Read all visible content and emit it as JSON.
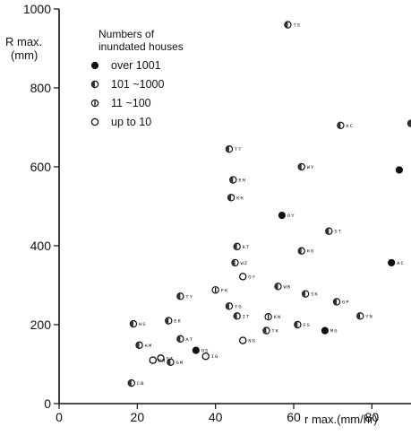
{
  "chart_data": {
    "type": "scatter",
    "xlabel": "r max.(mm/hr)",
    "ylabel": "R max. (mm)",
    "ylabel_lines": [
      "R max.",
      "(mm)"
    ],
    "xlim": [
      0,
      90
    ],
    "ylim": [
      0,
      1000
    ],
    "x_ticks": [
      0,
      20,
      40,
      60,
      80
    ],
    "y_ticks": [
      0,
      200,
      400,
      600,
      800,
      1000
    ],
    "x_tick_labels": [
      "0",
      "20",
      "40",
      "60",
      "80"
    ],
    "y_tick_labels": [
      "0",
      "200",
      "400",
      "600",
      "800",
      "1000"
    ],
    "grid": false,
    "legend": {
      "position": "top-left",
      "title_lines": [
        "Numbers of",
        "inundated houses"
      ],
      "entries": [
        {
          "key": "over1001",
          "label": "over 1001",
          "marker": "filled-circle"
        },
        {
          "key": "101to1000",
          "label": "101 ~1000",
          "marker": "circle-with-hatch"
        },
        {
          "key": "11to100",
          "label": "11 ~100",
          "marker": "circle-with-light-hatch"
        },
        {
          "key": "upto10",
          "label": "up to 10",
          "marker": "open-circle"
        }
      ]
    },
    "points": [
      {
        "label": "TS",
        "x": 58.5,
        "y": 960,
        "cat": "101to1000"
      },
      {
        "label": "KC",
        "x": 72,
        "y": 705,
        "cat": "101to1000"
      },
      {
        "label": "TT",
        "x": 43.5,
        "y": 645,
        "cat": "101to1000"
      },
      {
        "label": "WY",
        "x": 62,
        "y": 600,
        "cat": "101to1000"
      },
      {
        "label": "EH",
        "x": 44.5,
        "y": 567,
        "cat": "101to1000"
      },
      {
        "label": "KH",
        "x": 44,
        "y": 522,
        "cat": "101to1000"
      },
      {
        "label": "OY",
        "x": 57,
        "y": 477,
        "cat": "over1001"
      },
      {
        "label": "ST",
        "x": 69,
        "y": 437,
        "cat": "101to1000"
      },
      {
        "label": "KT",
        "x": 45.5,
        "y": 398,
        "cat": "101to1000"
      },
      {
        "label": "KG",
        "x": 62,
        "y": 387,
        "cat": "101to1000"
      },
      {
        "label": "WZ",
        "x": 45,
        "y": 357,
        "cat": "101to1000"
      },
      {
        "label": "AC",
        "x": 85,
        "y": 357,
        "cat": "over1001"
      },
      {
        "label": "OY",
        "x": 47,
        "y": 322,
        "cat": "upto10"
      },
      {
        "label": "WB",
        "x": 56,
        "y": 297,
        "cat": "101to1000"
      },
      {
        "label": "FK",
        "x": 40,
        "y": 288,
        "cat": "11to100"
      },
      {
        "label": "SK",
        "x": 63,
        "y": 278,
        "cat": "101to1000"
      },
      {
        "label": "TY",
        "x": 31,
        "y": 272,
        "cat": "101to1000"
      },
      {
        "label": "GP",
        "x": 71,
        "y": 258,
        "cat": "101to1000"
      },
      {
        "label": "TG",
        "x": 43.5,
        "y": 247,
        "cat": "101to1000"
      },
      {
        "label": "IT",
        "x": 45.5,
        "y": 222,
        "cat": "101to1000"
      },
      {
        "label": "KN",
        "x": 53.5,
        "y": 220,
        "cat": "11to100"
      },
      {
        "label": "YN",
        "x": 77,
        "y": 222,
        "cat": "101to1000"
      },
      {
        "label": "EK",
        "x": 28,
        "y": 210,
        "cat": "101to1000"
      },
      {
        "label": "HS",
        "x": 19,
        "y": 202,
        "cat": "101to1000"
      },
      {
        "label": "FS",
        "x": 61,
        "y": 200,
        "cat": "101to1000"
      },
      {
        "label": "TK",
        "x": 53,
        "y": 185,
        "cat": "101to1000"
      },
      {
        "label": "MG",
        "x": 68,
        "y": 185,
        "cat": "over1001"
      },
      {
        "label": "AT",
        "x": 31,
        "y": 164,
        "cat": "101to1000"
      },
      {
        "label": "NG",
        "x": 47,
        "y": 160,
        "cat": "upto10"
      },
      {
        "label": "AM",
        "x": 20.5,
        "y": 148,
        "cat": "101to1000"
      },
      {
        "label": "OS",
        "x": 35,
        "y": 135,
        "cat": "over1001"
      },
      {
        "label": "IG",
        "x": 37.5,
        "y": 120,
        "cat": "upto10"
      },
      {
        "label": "ST",
        "x": 26,
        "y": 115,
        "cat": "upto10"
      },
      {
        "label": "NN",
        "x": 24,
        "y": 110,
        "cat": "upto10"
      },
      {
        "label": "GM",
        "x": 28.5,
        "y": 105,
        "cat": "101to1000"
      },
      {
        "label": "CB",
        "x": 18.5,
        "y": 52,
        "cat": "101to1000"
      },
      {
        "label": "",
        "x": 90,
        "y": 710,
        "cat": "101to1000"
      },
      {
        "label": "",
        "x": 87,
        "y": 592,
        "cat": "over1001"
      }
    ]
  }
}
